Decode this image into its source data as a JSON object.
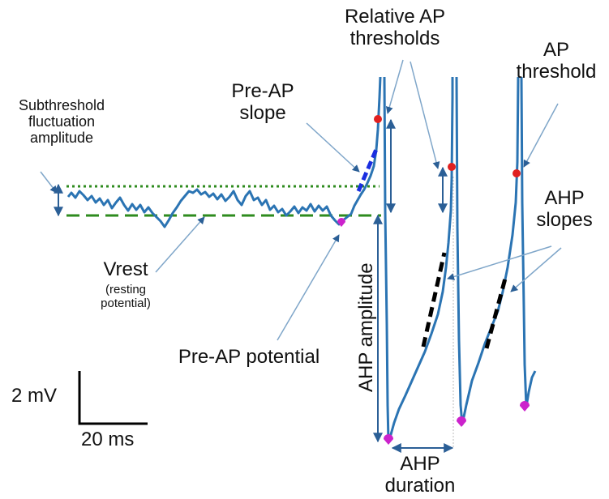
{
  "labels": {
    "relative_ap_thresholds": [
      "Relative AP",
      "thresholds"
    ],
    "ap_threshold": [
      "AP",
      "threshold"
    ],
    "subthreshold": [
      "Subthreshold",
      "fluctuation",
      "amplitude"
    ],
    "pre_ap_slope": [
      "Pre-AP",
      "slope"
    ],
    "ahp_slopes": [
      "AHP",
      "slopes"
    ],
    "vrest": "Vrest",
    "vrest_note": [
      "(resting",
      "potential)"
    ],
    "pre_ap_potential": "Pre-AP potential",
    "ahp_amplitude": "AHP amplitude",
    "ahp_duration": [
      "AHP",
      "duration"
    ]
  },
  "scale_bar": {
    "voltage": "2 mV",
    "time": "20 ms"
  },
  "colors": {
    "trace": "#2b74b3",
    "threshold_marker": "#e02020",
    "ahp_marker": "#cc22cc",
    "vrest_line": "#2e8b1e",
    "fluctuation_line": "#2e8b1e",
    "pre_ap_slope_line": "#1a2ee0",
    "ahp_slope_line": "#000000",
    "annotation_arrow": "#7fa6c9",
    "measure_arrow": "#2b5f96"
  }
}
